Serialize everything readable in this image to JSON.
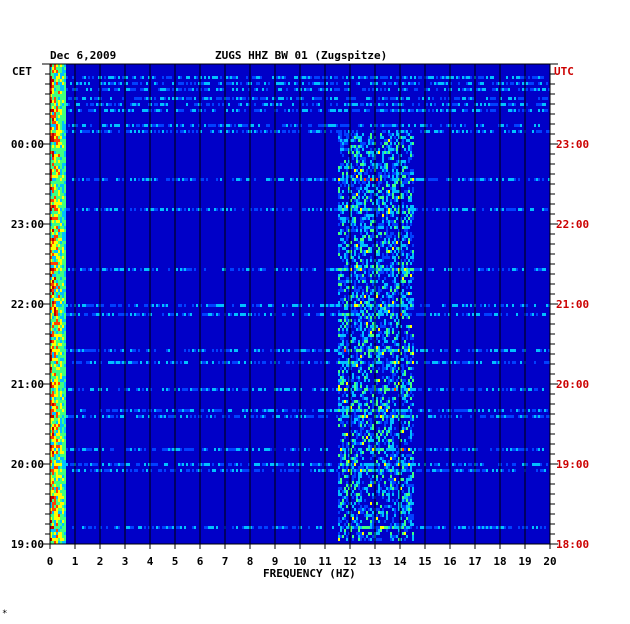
{
  "header": {
    "date": "Dec 6,2009",
    "station": "ZUGS HHZ BW 01 (Zugspitze)"
  },
  "left_zone": "CET",
  "right_zone": "UTC",
  "corner_mark": "*",
  "colors": {
    "background": "#0000c8",
    "grid": "#000000",
    "left_text": "#000000",
    "right_text": "#cc0000"
  },
  "chart_data": {
    "type": "heatmap",
    "title": "ZUGS HHZ BW 01 (Zugspitze)",
    "xlabel": "FREQUENCY (HZ)",
    "ylabel": "",
    "xlim": [
      0,
      20
    ],
    "x_ticks": [
      "0",
      "1",
      "2",
      "3",
      "4",
      "5",
      "6",
      "7",
      "8",
      "9",
      "10",
      "11",
      "12",
      "13",
      "14",
      "15",
      "16",
      "17",
      "18",
      "19",
      "20"
    ],
    "left_y_ticks": [
      "00:00",
      "23:00",
      "22:00",
      "21:00",
      "20:00",
      "19:00"
    ],
    "right_y_ticks": [
      "23:00",
      "22:00",
      "21:00",
      "20:00",
      "19:00",
      "18:00"
    ],
    "colorscale": [
      "#0000c8",
      "#0040ff",
      "#00c0ff",
      "#40ff80",
      "#ffff00",
      "#ff4000",
      "#c00000"
    ],
    "hot_bands_hz": [
      [
        0,
        0.6
      ],
      [
        11.5,
        14.5
      ]
    ]
  }
}
